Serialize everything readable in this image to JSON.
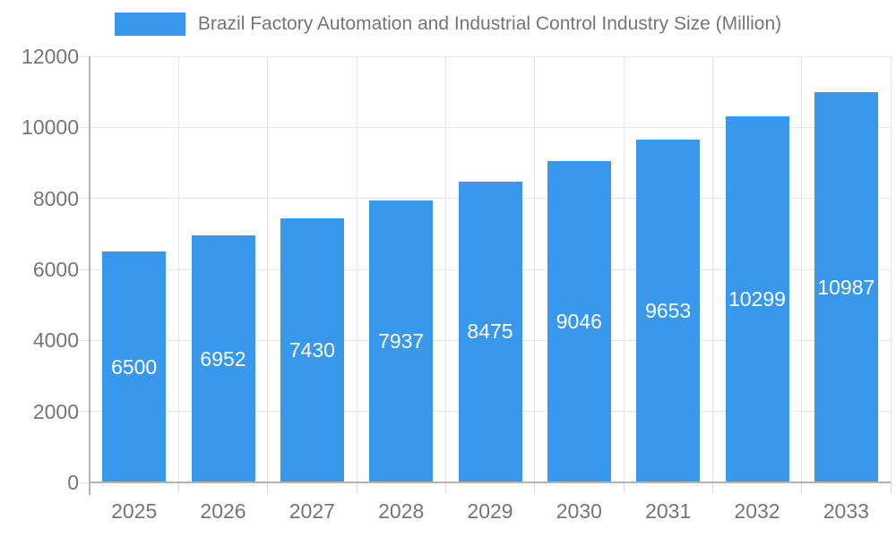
{
  "chart_data": {
    "type": "bar",
    "title": "Brazil Factory Automation and Industrial Control Industry Size (Million)",
    "categories": [
      "2025",
      "2026",
      "2027",
      "2028",
      "2029",
      "2030",
      "2031",
      "2032",
      "2033"
    ],
    "values": [
      6500,
      6952,
      7430,
      7937,
      8475,
      9046,
      9653,
      10299,
      10987
    ],
    "xlabel": "",
    "ylabel": "",
    "ylim": [
      0,
      12000
    ],
    "yticks": [
      0,
      2000,
      4000,
      6000,
      8000,
      10000,
      12000
    ],
    "legend_position": "top",
    "grid": true,
    "value_labels": "inside-center-white",
    "colors": {
      "bar": "#3899EC",
      "axis_text": "#757575",
      "legend_text": "#757575",
      "grid_line": "#e6e6e6",
      "axis_line": "#b3b3b3",
      "tick_line": "#d9d9d9",
      "value_label": "#ffffff",
      "background": "#ffffff"
    }
  }
}
